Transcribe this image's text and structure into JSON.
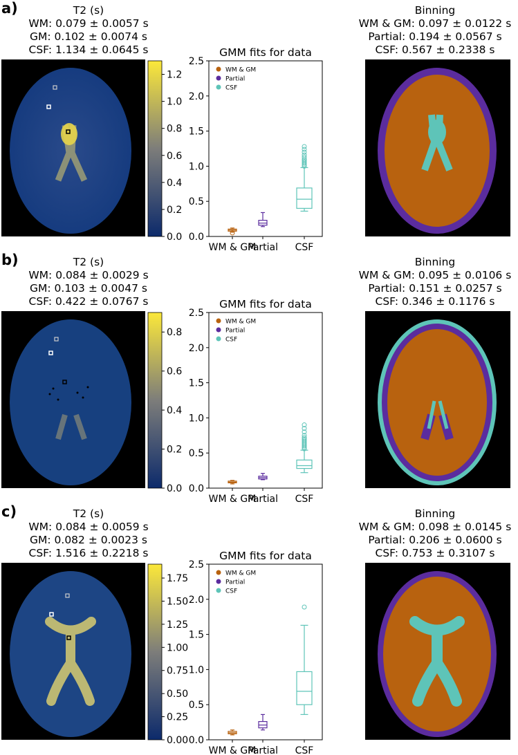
{
  "panels": [
    {
      "label": "a)",
      "t2": {
        "title": "T2 (s)",
        "wm": "WM: 0.079 ± 0.0057 s",
        "gm": "GM: 0.102 ± 0.0074 s",
        "csf": "CSF: 1.134 ± 0.0645 s"
      },
      "binning": {
        "title": "Binning",
        "wmgm": "WM & GM: 0.097 ± 0.0122 s",
        "partial": "Partial: 0.194 ± 0.0567 s",
        "csf": "CSF: 0.567 ± 0.2338 s"
      },
      "colorbar": {
        "max": 1.3,
        "ticks": [
          "0.0",
          "0.2",
          "0.4",
          "0.6",
          "0.8",
          "1.0",
          "1.2"
        ],
        "tick_values": [
          0,
          0.2,
          0.4,
          0.6,
          0.8,
          1.0,
          1.2
        ]
      }
    },
    {
      "label": "b)",
      "t2": {
        "title": "T2 (s)",
        "wm": "WM: 0.084 ± 0.0029 s",
        "gm": "GM: 0.103 ± 0.0047 s",
        "csf": "CSF: 0.422 ± 0.0767 s"
      },
      "binning": {
        "title": "Binning",
        "wmgm": "WM & GM: 0.095 ± 0.0106 s",
        "partial": "Partial: 0.151 ± 0.0257 s",
        "csf": "CSF: 0.346 ± 0.1176 s"
      },
      "colorbar": {
        "max": 0.9,
        "ticks": [
          "0.0",
          "0.2",
          "0.4",
          "0.6",
          "0.8"
        ],
        "tick_values": [
          0,
          0.2,
          0.4,
          0.6,
          0.8
        ]
      }
    },
    {
      "label": "c)",
      "t2": {
        "title": "T2 (s)",
        "wm": "WM: 0.084 ± 0.0059 s",
        "gm": "GM: 0.082 ± 0.0023 s",
        "csf": "CSF: 1.516 ± 0.2218 s"
      },
      "binning": {
        "title": "Binning",
        "wmgm": "WM & GM: 0.098 ± 0.0145 s",
        "partial": "Partial: 0.206 ± 0.0600 s",
        "csf": "CSF: 0.753 ± 0.3107 s"
      },
      "colorbar": {
        "max": 1.9,
        "ticks": [
          "0.00",
          "0.25",
          "0.50",
          "0.75",
          "1.00",
          "1.25",
          "1.50",
          "1.75"
        ],
        "tick_values": [
          0,
          0.25,
          0.5,
          0.75,
          1.0,
          1.25,
          1.5,
          1.75
        ]
      }
    }
  ],
  "colors": {
    "wmgm": "#b8620f",
    "partial": "#5b2c9e",
    "csf": "#5ec4b8",
    "t2_low": "#0c2a6b",
    "t2_mid": "#7d7d7a",
    "t2_high": "#fce83a"
  },
  "chart_data": [
    {
      "type": "box",
      "title": "GMM fits for data",
      "categories": [
        "WM & GM",
        "Partial",
        "CSF"
      ],
      "legend": [
        "WM & GM",
        "Partial",
        "CSF"
      ],
      "legend_position": "top-left",
      "ylim": [
        0,
        2.5
      ],
      "yticks": [
        "0.0",
        "0.5",
        "1.0",
        "1.5",
        "2.0",
        "2.5"
      ],
      "ytick_values": [
        0,
        0.5,
        1.0,
        1.5,
        2.0,
        2.5
      ],
      "boxes": [
        {
          "min": 0.06,
          "q1": 0.075,
          "median": 0.09,
          "q3": 0.105,
          "max": 0.12,
          "outliers": [
            0.05
          ]
        },
        {
          "min": 0.14,
          "q1": 0.16,
          "median": 0.19,
          "q3": 0.23,
          "max": 0.34,
          "outliers": []
        },
        {
          "min": 0.36,
          "q1": 0.4,
          "median": 0.53,
          "q3": 0.69,
          "max": 0.98,
          "outliers": [
            1.0,
            1.02,
            1.04,
            1.06,
            1.08,
            1.1,
            1.13,
            1.16,
            1.2,
            1.24,
            1.28
          ]
        }
      ]
    },
    {
      "type": "box",
      "title": "GMM fits for data",
      "categories": [
        "WM & GM",
        "Partial",
        "CSF"
      ],
      "legend": [
        "WM & GM",
        "Partial",
        "CSF"
      ],
      "legend_position": "top-left",
      "ylim": [
        0,
        2.5
      ],
      "yticks": [
        "0.0",
        "0.5",
        "1.0",
        "1.5",
        "2.0",
        "2.5"
      ],
      "ytick_values": [
        0,
        0.5,
        1.0,
        1.5,
        2.0,
        2.5
      ],
      "boxes": [
        {
          "min": 0.06,
          "q1": 0.075,
          "median": 0.085,
          "q3": 0.1,
          "max": 0.11,
          "outliers": []
        },
        {
          "min": 0.12,
          "q1": 0.13,
          "median": 0.15,
          "q3": 0.17,
          "max": 0.21,
          "outliers": []
        },
        {
          "min": 0.22,
          "q1": 0.28,
          "median": 0.32,
          "q3": 0.4,
          "max": 0.54,
          "outliers": [
            0.56,
            0.58,
            0.6,
            0.62,
            0.64,
            0.66,
            0.68,
            0.7,
            0.72,
            0.75,
            0.8,
            0.85,
            0.9
          ]
        }
      ]
    },
    {
      "type": "box",
      "title": "GMM fits for data",
      "categories": [
        "WM & GM",
        "Partial",
        "CSF"
      ],
      "legend": [
        "WM & GM",
        "Partial",
        "CSF"
      ],
      "legend_position": "top-left",
      "ylim": [
        0,
        2.5
      ],
      "yticks": [
        "0.0",
        "0.5",
        "1.0",
        "1.5",
        "2.0",
        "2.5"
      ],
      "ytick_values": [
        0,
        0.5,
        1.0,
        1.5,
        2.0,
        2.5
      ],
      "boxes": [
        {
          "min": 0.07,
          "q1": 0.085,
          "median": 0.1,
          "q3": 0.12,
          "max": 0.14,
          "outliers": []
        },
        {
          "min": 0.14,
          "q1": 0.17,
          "median": 0.21,
          "q3": 0.26,
          "max": 0.36,
          "outliers": []
        },
        {
          "min": 0.36,
          "q1": 0.5,
          "median": 0.69,
          "q3": 0.97,
          "max": 1.63,
          "outliers": [
            1.89
          ]
        }
      ]
    }
  ]
}
